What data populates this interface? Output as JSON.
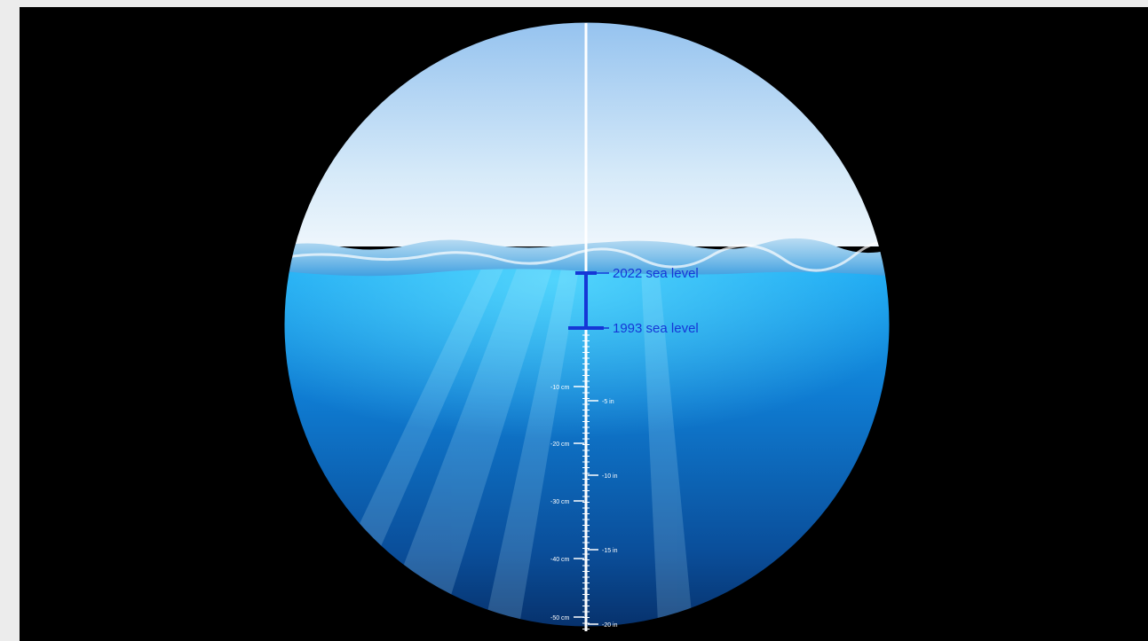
{
  "scene": {
    "labels": {
      "level_2022": "2022 sea level",
      "level_1993": "1993 sea level"
    },
    "scale_left": [
      "-10 cm",
      "-20 cm",
      "-30 cm",
      "-40 cm",
      "-50 cm"
    ],
    "scale_right": [
      "-5 in",
      "-10 in",
      "-15 in",
      "-20 in"
    ],
    "colors": {
      "sky_top": "#8fc0ee",
      "sky_bottom": "#e6f2fb",
      "water_top": "#1aa6f2",
      "water_bottom": "#07306b",
      "label_color": "#1537d6"
    }
  }
}
